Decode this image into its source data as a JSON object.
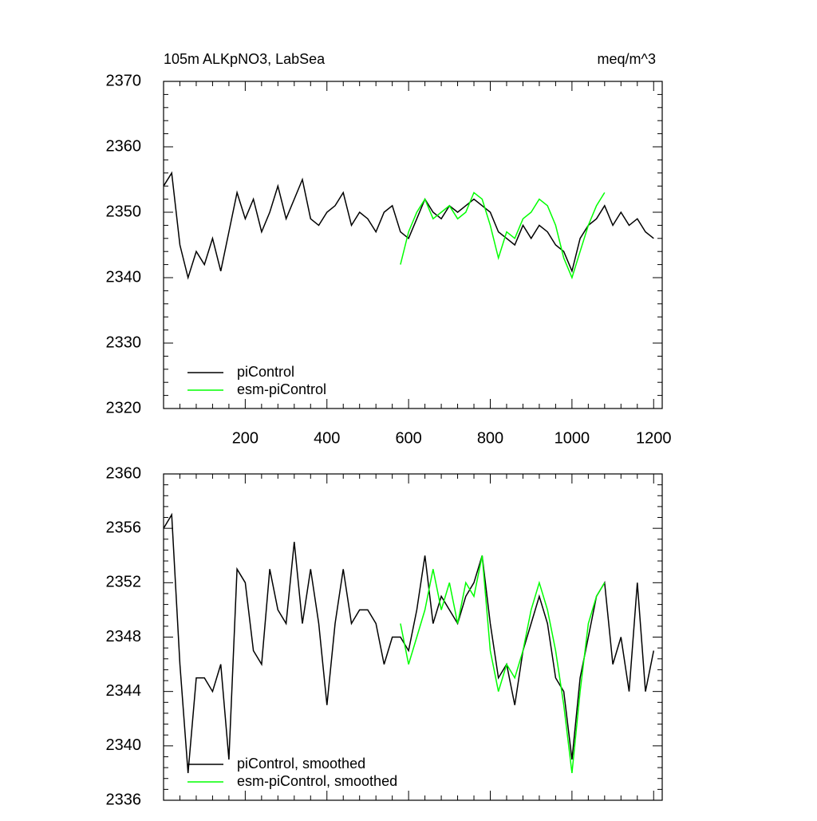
{
  "chart_data": [
    {
      "type": "line",
      "title": "105m ALKpNO3, LabSea",
      "units_label": "meq/m^3",
      "x": [
        0,
        20,
        40,
        60,
        80,
        100,
        120,
        140,
        160,
        180,
        200,
        220,
        240,
        260,
        280,
        300,
        320,
        340,
        360,
        380,
        400,
        420,
        440,
        460,
        480,
        500,
        520,
        540,
        560,
        580,
        600,
        620,
        640,
        660,
        680,
        700,
        720,
        740,
        760,
        780,
        800,
        820,
        840,
        860,
        880,
        900,
        920,
        940,
        960,
        980,
        1000,
        1020,
        1040,
        1060,
        1080,
        1100,
        1120,
        1140,
        1160,
        1180,
        1200
      ],
      "series": [
        {
          "name": "piControl",
          "color": "#000000",
          "values": [
            2354,
            2356,
            2345,
            2340,
            2344,
            2342,
            2346,
            2341,
            2347,
            2353,
            2349,
            2352,
            2347,
            2350,
            2354,
            2349,
            2352,
            2355,
            2349,
            2348,
            2350,
            2351,
            2353,
            2348,
            2350,
            2349,
            2347,
            2350,
            2351,
            2347,
            2346,
            2349,
            2352,
            2350,
            2349,
            2351,
            2350,
            2351,
            2352,
            2351,
            2350,
            2347,
            2346,
            2345,
            2348,
            2346,
            2348,
            2347,
            2345,
            2344,
            2341,
            2346,
            2348,
            2349,
            2351,
            2348,
            2350,
            2348,
            2349,
            2347,
            2346
          ]
        },
        {
          "name": "esm-piControl",
          "color": "#00ff00",
          "values": [
            null,
            null,
            null,
            null,
            null,
            null,
            null,
            null,
            null,
            null,
            null,
            null,
            null,
            null,
            null,
            null,
            null,
            null,
            null,
            null,
            null,
            null,
            null,
            null,
            null,
            null,
            null,
            null,
            null,
            2342,
            2347,
            2350,
            2352,
            2349,
            2350,
            2351,
            2349,
            2350,
            2353,
            2352,
            2348,
            2343,
            2347,
            2346,
            2349,
            2350,
            2352,
            2351,
            2348,
            2343,
            2340,
            2344,
            2348,
            2351,
            2353,
            null,
            null,
            null,
            null,
            null,
            null
          ]
        }
      ],
      "xlim": [
        0,
        1221
      ],
      "ylim": [
        2320,
        2370
      ],
      "xticks": [
        200,
        400,
        600,
        800,
        1000,
        1200
      ],
      "yticks": [
        2320,
        2330,
        2340,
        2350,
        2360,
        2370
      ]
    },
    {
      "type": "line",
      "x": [
        0,
        20,
        40,
        60,
        80,
        100,
        120,
        140,
        160,
        180,
        200,
        220,
        240,
        260,
        280,
        300,
        320,
        340,
        360,
        380,
        400,
        420,
        440,
        460,
        480,
        500,
        520,
        540,
        560,
        580,
        600,
        620,
        640,
        660,
        680,
        700,
        720,
        740,
        760,
        780,
        800,
        820,
        840,
        860,
        880,
        900,
        920,
        940,
        960,
        980,
        1000,
        1020,
        1040,
        1060,
        1080,
        1100,
        1120,
        1140,
        1160,
        1180,
        1200
      ],
      "series": [
        {
          "name": "piControl, smoothed",
          "color": "#000000",
          "values": [
            2356,
            2357,
            2346,
            2338,
            2345,
            2345,
            2344,
            2346,
            2339,
            2353,
            2352,
            2347,
            2346,
            2353,
            2350,
            2349,
            2355,
            2349,
            2353,
            2349,
            2343,
            2349,
            2353,
            2349,
            2350,
            2350,
            2349,
            2346,
            2348,
            2348,
            2347,
            2350,
            2354,
            2349,
            2351,
            2350,
            2349,
            2351,
            2352,
            2354,
            2349,
            2345,
            2346,
            2343,
            2347,
            2349,
            2351,
            2349,
            2345,
            2344,
            2339,
            2345,
            2348,
            2351,
            2352,
            2346,
            2348,
            2344,
            2352,
            2344,
            2347
          ]
        },
        {
          "name": "esm-piControl, smoothed",
          "color": "#00ff00",
          "values": [
            null,
            null,
            null,
            null,
            null,
            null,
            null,
            null,
            null,
            null,
            null,
            null,
            null,
            null,
            null,
            null,
            null,
            null,
            null,
            null,
            null,
            null,
            null,
            null,
            null,
            null,
            null,
            null,
            null,
            2349,
            2346,
            2348,
            2350,
            2353,
            2350,
            2352,
            2349,
            2352,
            2351,
            2354,
            2347,
            2344,
            2346,
            2345,
            2347,
            2350,
            2352,
            2350,
            2347,
            2343,
            2338,
            2344,
            2349,
            2351,
            2352,
            null,
            null,
            null,
            null,
            null,
            null
          ]
        }
      ],
      "xlim": [
        0,
        1221
      ],
      "ylim": [
        2336,
        2360
      ],
      "xticks": [
        200,
        400,
        600,
        800,
        1000,
        1200
      ],
      "yticks": [
        2336,
        2340,
        2344,
        2348,
        2352,
        2356,
        2360
      ]
    }
  ]
}
